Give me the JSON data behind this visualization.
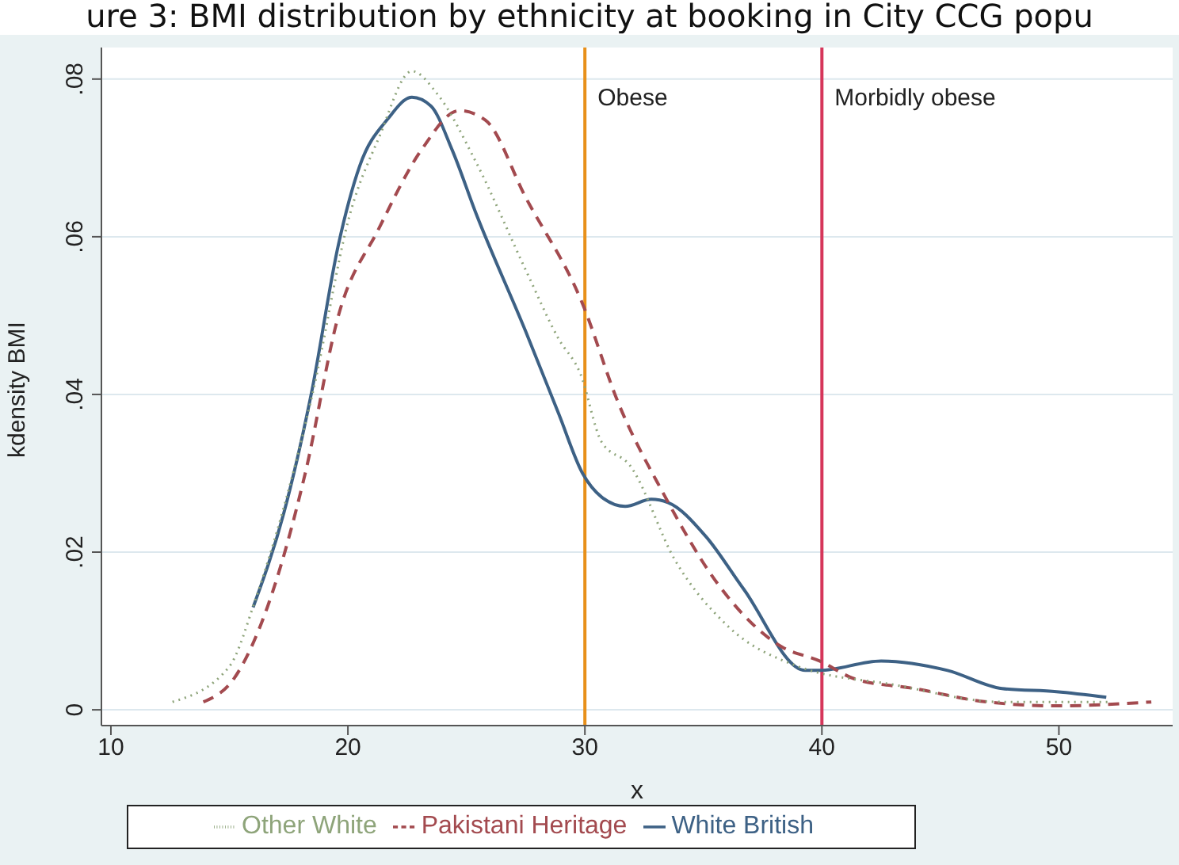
{
  "chart_data": {
    "type": "line",
    "title": "ure 3: BMI distribution by ethnicity at booking in City CCG popu",
    "xlabel": "x",
    "ylabel": "kdensity BMI",
    "xlim": [
      9.6,
      54.8
    ],
    "xticks": [
      10,
      20,
      30,
      40,
      50
    ],
    "ylim": [
      -0.002,
      0.084
    ],
    "yticks": [
      {
        "value": 0,
        "label": "0"
      },
      {
        "value": 0.02,
        "label": ".02"
      },
      {
        "value": 0.04,
        "label": ".04"
      },
      {
        "value": 0.06,
        "label": ".06"
      },
      {
        "value": 0.08,
        "label": ".08"
      }
    ],
    "grid": "y",
    "legend": "bottom",
    "marker": "none",
    "series": [
      {
        "name": "White British",
        "color": "#3d6185",
        "line_style": "solid",
        "x": [
          16.0,
          17.3,
          18.45,
          19.6,
          20.5,
          21.7,
          22.7,
          23.5,
          24.4,
          25.4,
          27.5,
          28.9,
          29.9,
          30.7,
          31.7,
          32.8,
          33.5,
          35.1,
          36.7,
          39.3,
          39.9,
          42.5,
          45.3,
          47.6,
          49.9,
          52.0
        ],
        "values": [
          0.013,
          0.025,
          0.04,
          0.059,
          0.069,
          0.075,
          0.0777,
          0.0766,
          0.071,
          0.063,
          0.048,
          0.0375,
          0.03,
          0.027,
          0.0258,
          0.0267,
          0.0263,
          0.022,
          0.0153,
          0.005,
          0.005,
          0.0062,
          0.005,
          0.0027,
          0.0023,
          0.0016
        ]
      },
      {
        "name": "Pakistani Heritage",
        "color": "#a34a4f",
        "line_style": "dashed",
        "x": [
          13.9,
          15.2,
          16.6,
          18.2,
          19.6,
          21.3,
          23.1,
          24.7,
          25.8,
          27.5,
          29.9,
          31.4,
          33.3,
          35.6,
          38.3,
          39.9,
          41.4,
          43.9,
          46.7,
          49.9,
          53.9
        ],
        "values": [
          0.001,
          0.004,
          0.013,
          0.03,
          0.05,
          0.061,
          0.071,
          0.076,
          0.0748,
          0.065,
          0.0515,
          0.039,
          0.0275,
          0.016,
          0.008,
          0.0062,
          0.0039,
          0.0027,
          0.0011,
          0.0005,
          0.001
        ]
      },
      {
        "name": "Other White",
        "color": "#8ea47a",
        "line_style": "dotted",
        "x": [
          12.6,
          15.0,
          16.1,
          18.5,
          20.1,
          21.3,
          22.7,
          23.8,
          25.4,
          27.5,
          28.9,
          29.8,
          30.7,
          31.9,
          33.8,
          36.0,
          39.0,
          43.0,
          47.6,
          52.2
        ],
        "values": [
          0.001,
          0.0055,
          0.014,
          0.04,
          0.063,
          0.0725,
          0.081,
          0.078,
          0.0695,
          0.0558,
          0.047,
          0.0427,
          0.034,
          0.031,
          0.019,
          0.0107,
          0.0055,
          0.0032,
          0.001,
          0.001
        ]
      }
    ],
    "ref_lines": [
      {
        "axis": "x",
        "value": 30,
        "label": "Obese",
        "color": "#e8901a"
      },
      {
        "axis": "x",
        "value": 40,
        "label": "Morbidly obese",
        "color": "#d6365a"
      }
    ]
  }
}
